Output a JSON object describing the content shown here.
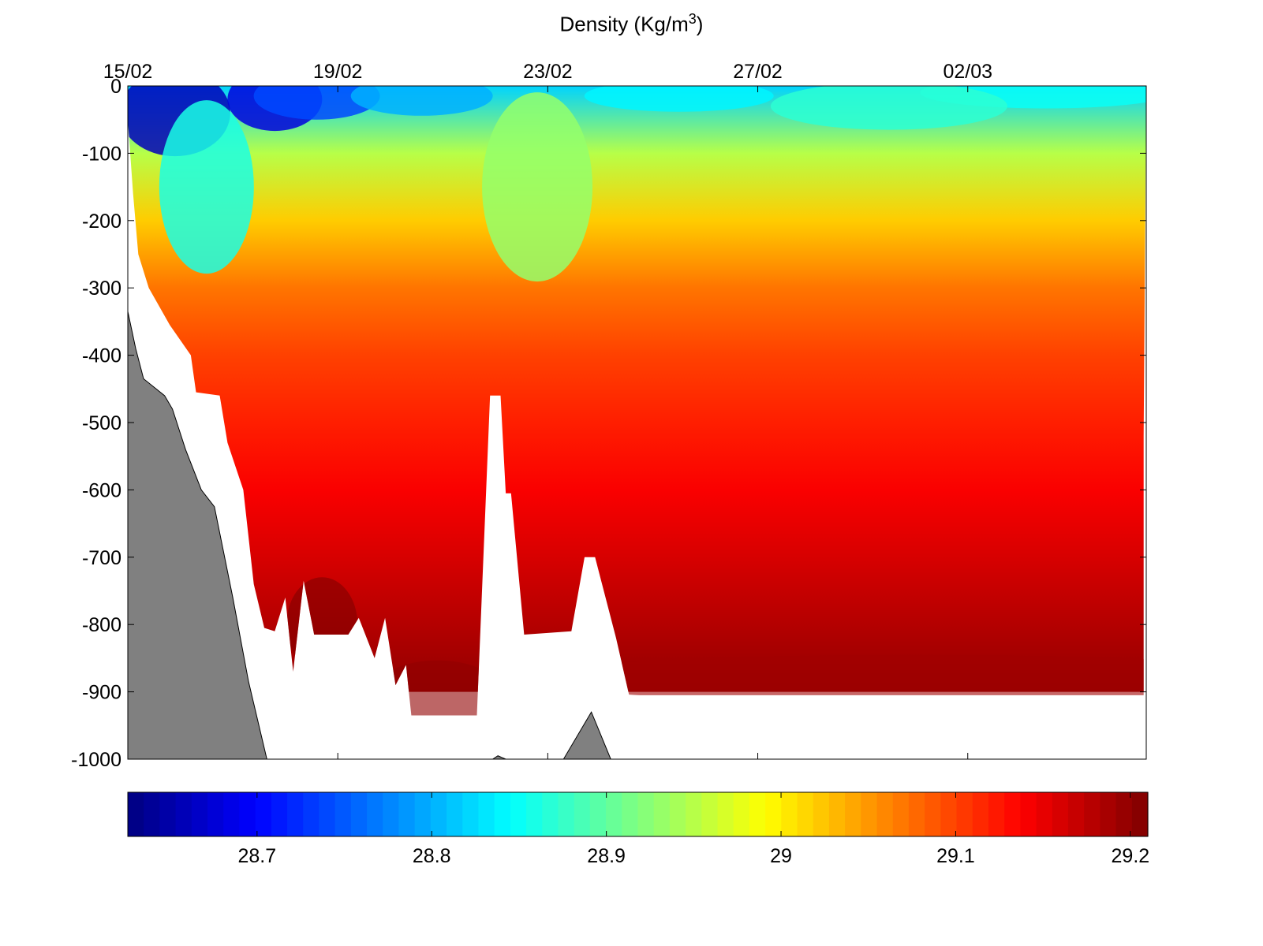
{
  "chart_data": {
    "type": "heatmap",
    "title": "Density (Kg/m3)",
    "title_parts": {
      "main": "Density (Kg/m",
      "superscript": "3",
      "close": ")"
    },
    "xlabel": "",
    "ylabel": "",
    "x_axis": {
      "position": "top",
      "unit": "date",
      "ticks": [
        {
          "label": "15/02",
          "day": 0
        },
        {
          "label": "19/02",
          "day": 4
        },
        {
          "label": "23/02",
          "day": 8
        },
        {
          "label": "27/02",
          "day": 12
        },
        {
          "label": "02/03",
          "day": 16
        }
      ],
      "range_days": [
        0,
        19.4
      ]
    },
    "y_axis": {
      "label": "",
      "ticks": [
        0,
        -100,
        -200,
        -300,
        -400,
        -500,
        -600,
        -700,
        -800,
        -900,
        -1000
      ],
      "ylim": [
        -1000,
        0
      ]
    },
    "colorbar": {
      "orientation": "horizontal",
      "placement": "bottom",
      "range": [
        28.626,
        29.21
      ],
      "ticks": [
        28.7,
        28.8,
        28.9,
        29,
        29.1,
        29.2
      ],
      "tick_labels": [
        "28.7",
        "28.8",
        "28.9",
        "29",
        "29.1",
        "29.2"
      ],
      "colormap": "jet",
      "levels": 64
    },
    "density_profile": {
      "depths": [
        0,
        -100,
        -200,
        -300,
        -400,
        -500,
        -600,
        -700,
        -800,
        -900
      ],
      "values": [
        28.82,
        28.95,
        29.02,
        29.07,
        29.1,
        29.12,
        29.14,
        29.16,
        29.18,
        29.2
      ]
    },
    "data_bottom_depth": [
      {
        "day": 0.0,
        "depth": -50
      },
      {
        "day": 0.1,
        "depth": -160
      },
      {
        "day": 0.2,
        "depth": -250
      },
      {
        "day": 0.4,
        "depth": -300
      },
      {
        "day": 0.8,
        "depth": -355
      },
      {
        "day": 1.2,
        "depth": -400
      },
      {
        "day": 1.3,
        "depth": -455
      },
      {
        "day": 1.75,
        "depth": -460
      },
      {
        "day": 1.9,
        "depth": -530
      },
      {
        "day": 2.2,
        "depth": -600
      },
      {
        "day": 2.4,
        "depth": -740
      },
      {
        "day": 2.6,
        "depth": -805
      },
      {
        "day": 2.8,
        "depth": -810
      },
      {
        "day": 3.0,
        "depth": -760
      },
      {
        "day": 3.15,
        "depth": -870
      },
      {
        "day": 3.35,
        "depth": -735
      },
      {
        "day": 3.55,
        "depth": -815
      },
      {
        "day": 4.2,
        "depth": -815
      },
      {
        "day": 4.4,
        "depth": -790
      },
      {
        "day": 4.7,
        "depth": -850
      },
      {
        "day": 4.9,
        "depth": -790
      },
      {
        "day": 5.1,
        "depth": -890
      },
      {
        "day": 5.3,
        "depth": -860
      },
      {
        "day": 5.4,
        "depth": -935
      },
      {
        "day": 6.65,
        "depth": -935
      },
      {
        "day": 6.9,
        "depth": -460
      },
      {
        "day": 7.1,
        "depth": -460
      },
      {
        "day": 7.2,
        "depth": -605
      },
      {
        "day": 7.3,
        "depth": -605
      },
      {
        "day": 7.55,
        "depth": -815
      },
      {
        "day": 8.45,
        "depth": -810
      },
      {
        "day": 8.7,
        "depth": -700
      },
      {
        "day": 8.9,
        "depth": -700
      },
      {
        "day": 9.3,
        "depth": -820
      },
      {
        "day": 9.55,
        "depth": -905
      },
      {
        "day": 19.35,
        "depth": -905
      },
      {
        "day": 19.35,
        "depth": -520
      },
      {
        "day": 19.4,
        "depth": 0
      }
    ],
    "bathymetry": [
      {
        "day": 0.0,
        "depth": -335
      },
      {
        "day": 0.15,
        "depth": -390
      },
      {
        "day": 0.3,
        "depth": -435
      },
      {
        "day": 0.7,
        "depth": -460
      },
      {
        "day": 0.85,
        "depth": -480
      },
      {
        "day": 1.1,
        "depth": -540
      },
      {
        "day": 1.4,
        "depth": -600
      },
      {
        "day": 1.65,
        "depth": -625
      },
      {
        "day": 2.0,
        "depth": -760
      },
      {
        "day": 2.3,
        "depth": -885
      },
      {
        "day": 2.65,
        "depth": -1000
      }
    ],
    "seamounts": [
      {
        "peak_day": 8.83,
        "peak_depth": -930,
        "base_start": 8.3,
        "base_end": 9.2
      },
      {
        "peak_day": 7.05,
        "peak_depth": -995,
        "base_start": 6.95,
        "base_end": 7.2
      }
    ],
    "colors": {
      "land": "#808080",
      "frame": "#000000",
      "background": "#ffffff"
    }
  }
}
